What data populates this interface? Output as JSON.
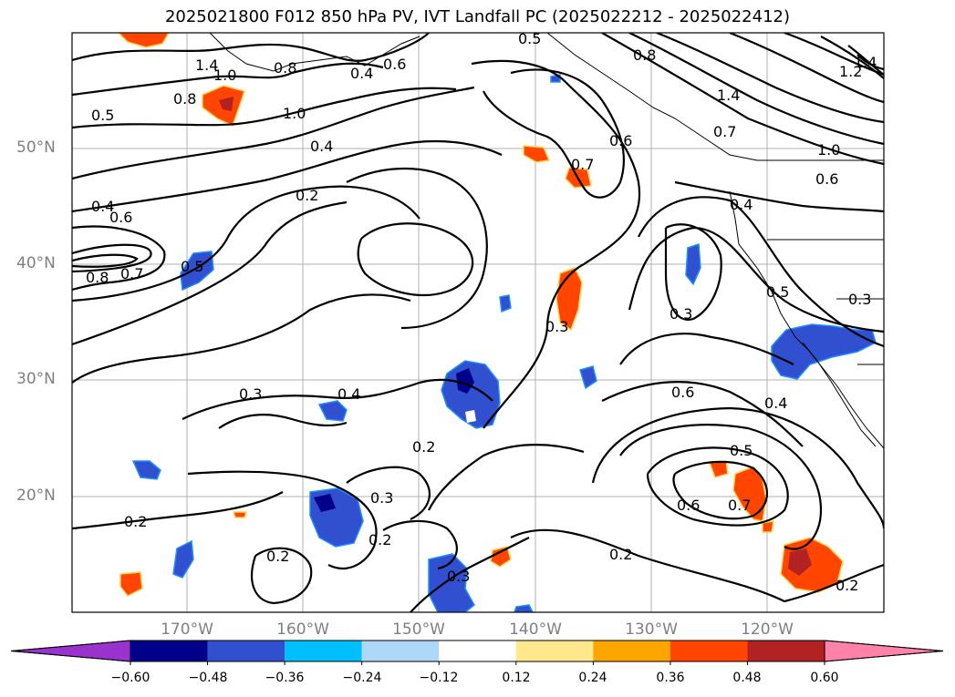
{
  "title": "2025021800 F012 850 hPa PV, IVT Landfall PC (2025022212 - 2025022412)",
  "lat_labels": [
    "50°N",
    "40°N",
    "30°N",
    "20°N"
  ],
  "lon_labels": [
    "170°W",
    "160°W",
    "150°W",
    "140°W",
    "130°W",
    "120°W"
  ],
  "colorbar": {
    "ticks": [
      "−0.60",
      "−0.48",
      "−0.36",
      "−0.24",
      "−0.12",
      "0.12",
      "0.24",
      "0.36",
      "0.48",
      "0.60"
    ],
    "colors": [
      "#9a32cd",
      "#00008b",
      "#3050d0",
      "#00bfff",
      "#add8f8",
      "#ffffff",
      "#ffe88c",
      "#ffa500",
      "#ff4500",
      "#b22222",
      "#ff82ab"
    ]
  },
  "contour_labels": [
    {
      "text": "0.5"
    },
    {
      "text": "1.4"
    },
    {
      "text": "0.8"
    },
    {
      "text": "1.0"
    },
    {
      "text": "0.8"
    },
    {
      "text": "0.5"
    },
    {
      "text": "1.0"
    },
    {
      "text": "0.4"
    },
    {
      "text": "0.6"
    },
    {
      "text": "0.4"
    },
    {
      "text": "0.2"
    },
    {
      "text": "0.4"
    },
    {
      "text": "0.6"
    },
    {
      "text": "0.8"
    },
    {
      "text": "0.7"
    },
    {
      "text": "0.5"
    },
    {
      "text": "0.7"
    },
    {
      "text": "0.6"
    },
    {
      "text": "0.8"
    },
    {
      "text": "1.4"
    },
    {
      "text": "0.7"
    },
    {
      "text": "1.0"
    },
    {
      "text": "0.6"
    },
    {
      "text": "0.4"
    },
    {
      "text": "0.3"
    },
    {
      "text": "0.5"
    },
    {
      "text": "0.3"
    },
    {
      "text": "0.3"
    },
    {
      "text": "0.6"
    },
    {
      "text": "0.4"
    },
    {
      "text": "0.3"
    },
    {
      "text": "0.4"
    },
    {
      "text": "0.2"
    },
    {
      "text": "0.3"
    },
    {
      "text": "0.2"
    },
    {
      "text": "0.2"
    },
    {
      "text": "0.2"
    },
    {
      "text": "0.3"
    },
    {
      "text": "0.2"
    },
    {
      "text": "0.5"
    },
    {
      "text": "0.6"
    },
    {
      "text": "0.7"
    },
    {
      "text": "0.2"
    },
    {
      "text": "1.2"
    },
    {
      "text": "1.4"
    }
  ]
}
